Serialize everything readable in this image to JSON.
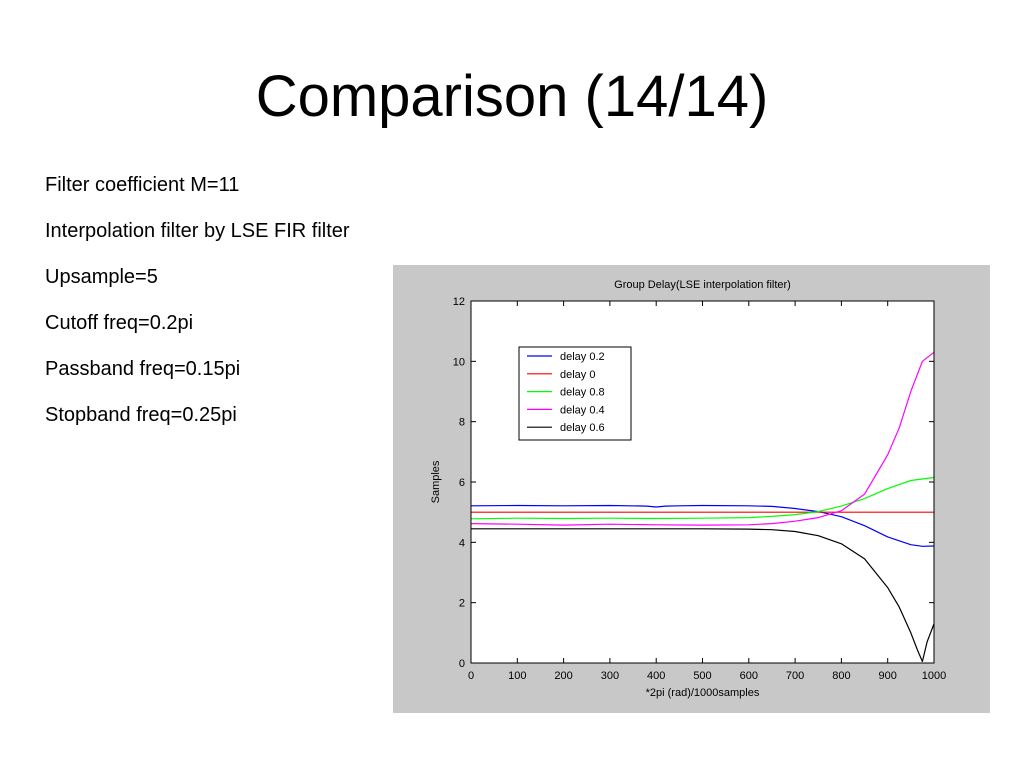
{
  "slide": {
    "title": "Comparison (14/14)",
    "bullets": [
      "Filter coefficient M=11",
      "Interpolation filter by LSE FIR filter",
      "Upsample=5",
      "Cutoff freq=0.2pi",
      "Passband freq=0.15pi",
      "Stopband freq=0.25pi"
    ]
  },
  "chart_data": {
    "type": "line",
    "title": "Group Delay(LSE interpolation filter)",
    "xlabel": "*2pi (rad)/1000samples",
    "ylabel": "Samples",
    "xlim": [
      0,
      1000
    ],
    "ylim": [
      0,
      12
    ],
    "xticks": [
      0,
      100,
      200,
      300,
      400,
      500,
      600,
      700,
      800,
      900,
      1000
    ],
    "yticks": [
      0,
      2,
      4,
      6,
      8,
      10,
      12
    ],
    "grid": false,
    "legend": "top-left",
    "colors": {
      "figure_bg": "#c8c8c8",
      "axes_bg": "#ffffff",
      "axes_line": "#000000",
      "delay_0_2": "#0000ff",
      "delay_0": "#ff0000",
      "delay_0_8": "#00ff00",
      "delay_0_4": "#ff00ff",
      "delay_0_6": "#000000"
    },
    "series": [
      {
        "name": "delay 0.2",
        "color": "#0000ff",
        "x": [
          0,
          100,
          200,
          300,
          380,
          400,
          420,
          450,
          500,
          600,
          650,
          700,
          750,
          800,
          850,
          900,
          950,
          975,
          1000
        ],
        "y": [
          5.21,
          5.22,
          5.21,
          5.22,
          5.2,
          5.17,
          5.2,
          5.21,
          5.22,
          5.21,
          5.19,
          5.12,
          5.02,
          4.85,
          4.55,
          4.18,
          3.92,
          3.87,
          3.88
        ]
      },
      {
        "name": "delay 0",
        "color": "#ff0000",
        "x": [
          0,
          1000
        ],
        "y": [
          5.0,
          5.0
        ]
      },
      {
        "name": "delay 0.8",
        "color": "#00ff00",
        "x": [
          0,
          100,
          200,
          300,
          400,
          500,
          600,
          650,
          700,
          750,
          800,
          850,
          900,
          950,
          1000
        ],
        "y": [
          4.78,
          4.8,
          4.79,
          4.8,
          4.79,
          4.8,
          4.82,
          4.86,
          4.92,
          5.02,
          5.2,
          5.45,
          5.78,
          6.05,
          6.15
        ]
      },
      {
        "name": "delay 0.4",
        "color": "#ff00ff",
        "x": [
          0,
          100,
          200,
          300,
          400,
          500,
          600,
          650,
          700,
          750,
          800,
          850,
          900,
          925,
          950,
          975,
          1000
        ],
        "y": [
          4.62,
          4.6,
          4.57,
          4.6,
          4.58,
          4.57,
          4.58,
          4.62,
          4.7,
          4.82,
          5.05,
          5.6,
          6.9,
          7.8,
          9.0,
          10.0,
          10.3
        ]
      },
      {
        "name": "delay 0.6",
        "color": "#000000",
        "x": [
          0,
          100,
          200,
          300,
          400,
          500,
          600,
          650,
          700,
          750,
          800,
          850,
          900,
          925,
          950,
          965,
          975,
          985,
          1000
        ],
        "y": [
          4.45,
          4.45,
          4.45,
          4.45,
          4.45,
          4.45,
          4.44,
          4.42,
          4.36,
          4.22,
          3.95,
          3.45,
          2.5,
          1.85,
          1.0,
          0.4,
          0.05,
          0.7,
          1.3
        ]
      }
    ]
  }
}
